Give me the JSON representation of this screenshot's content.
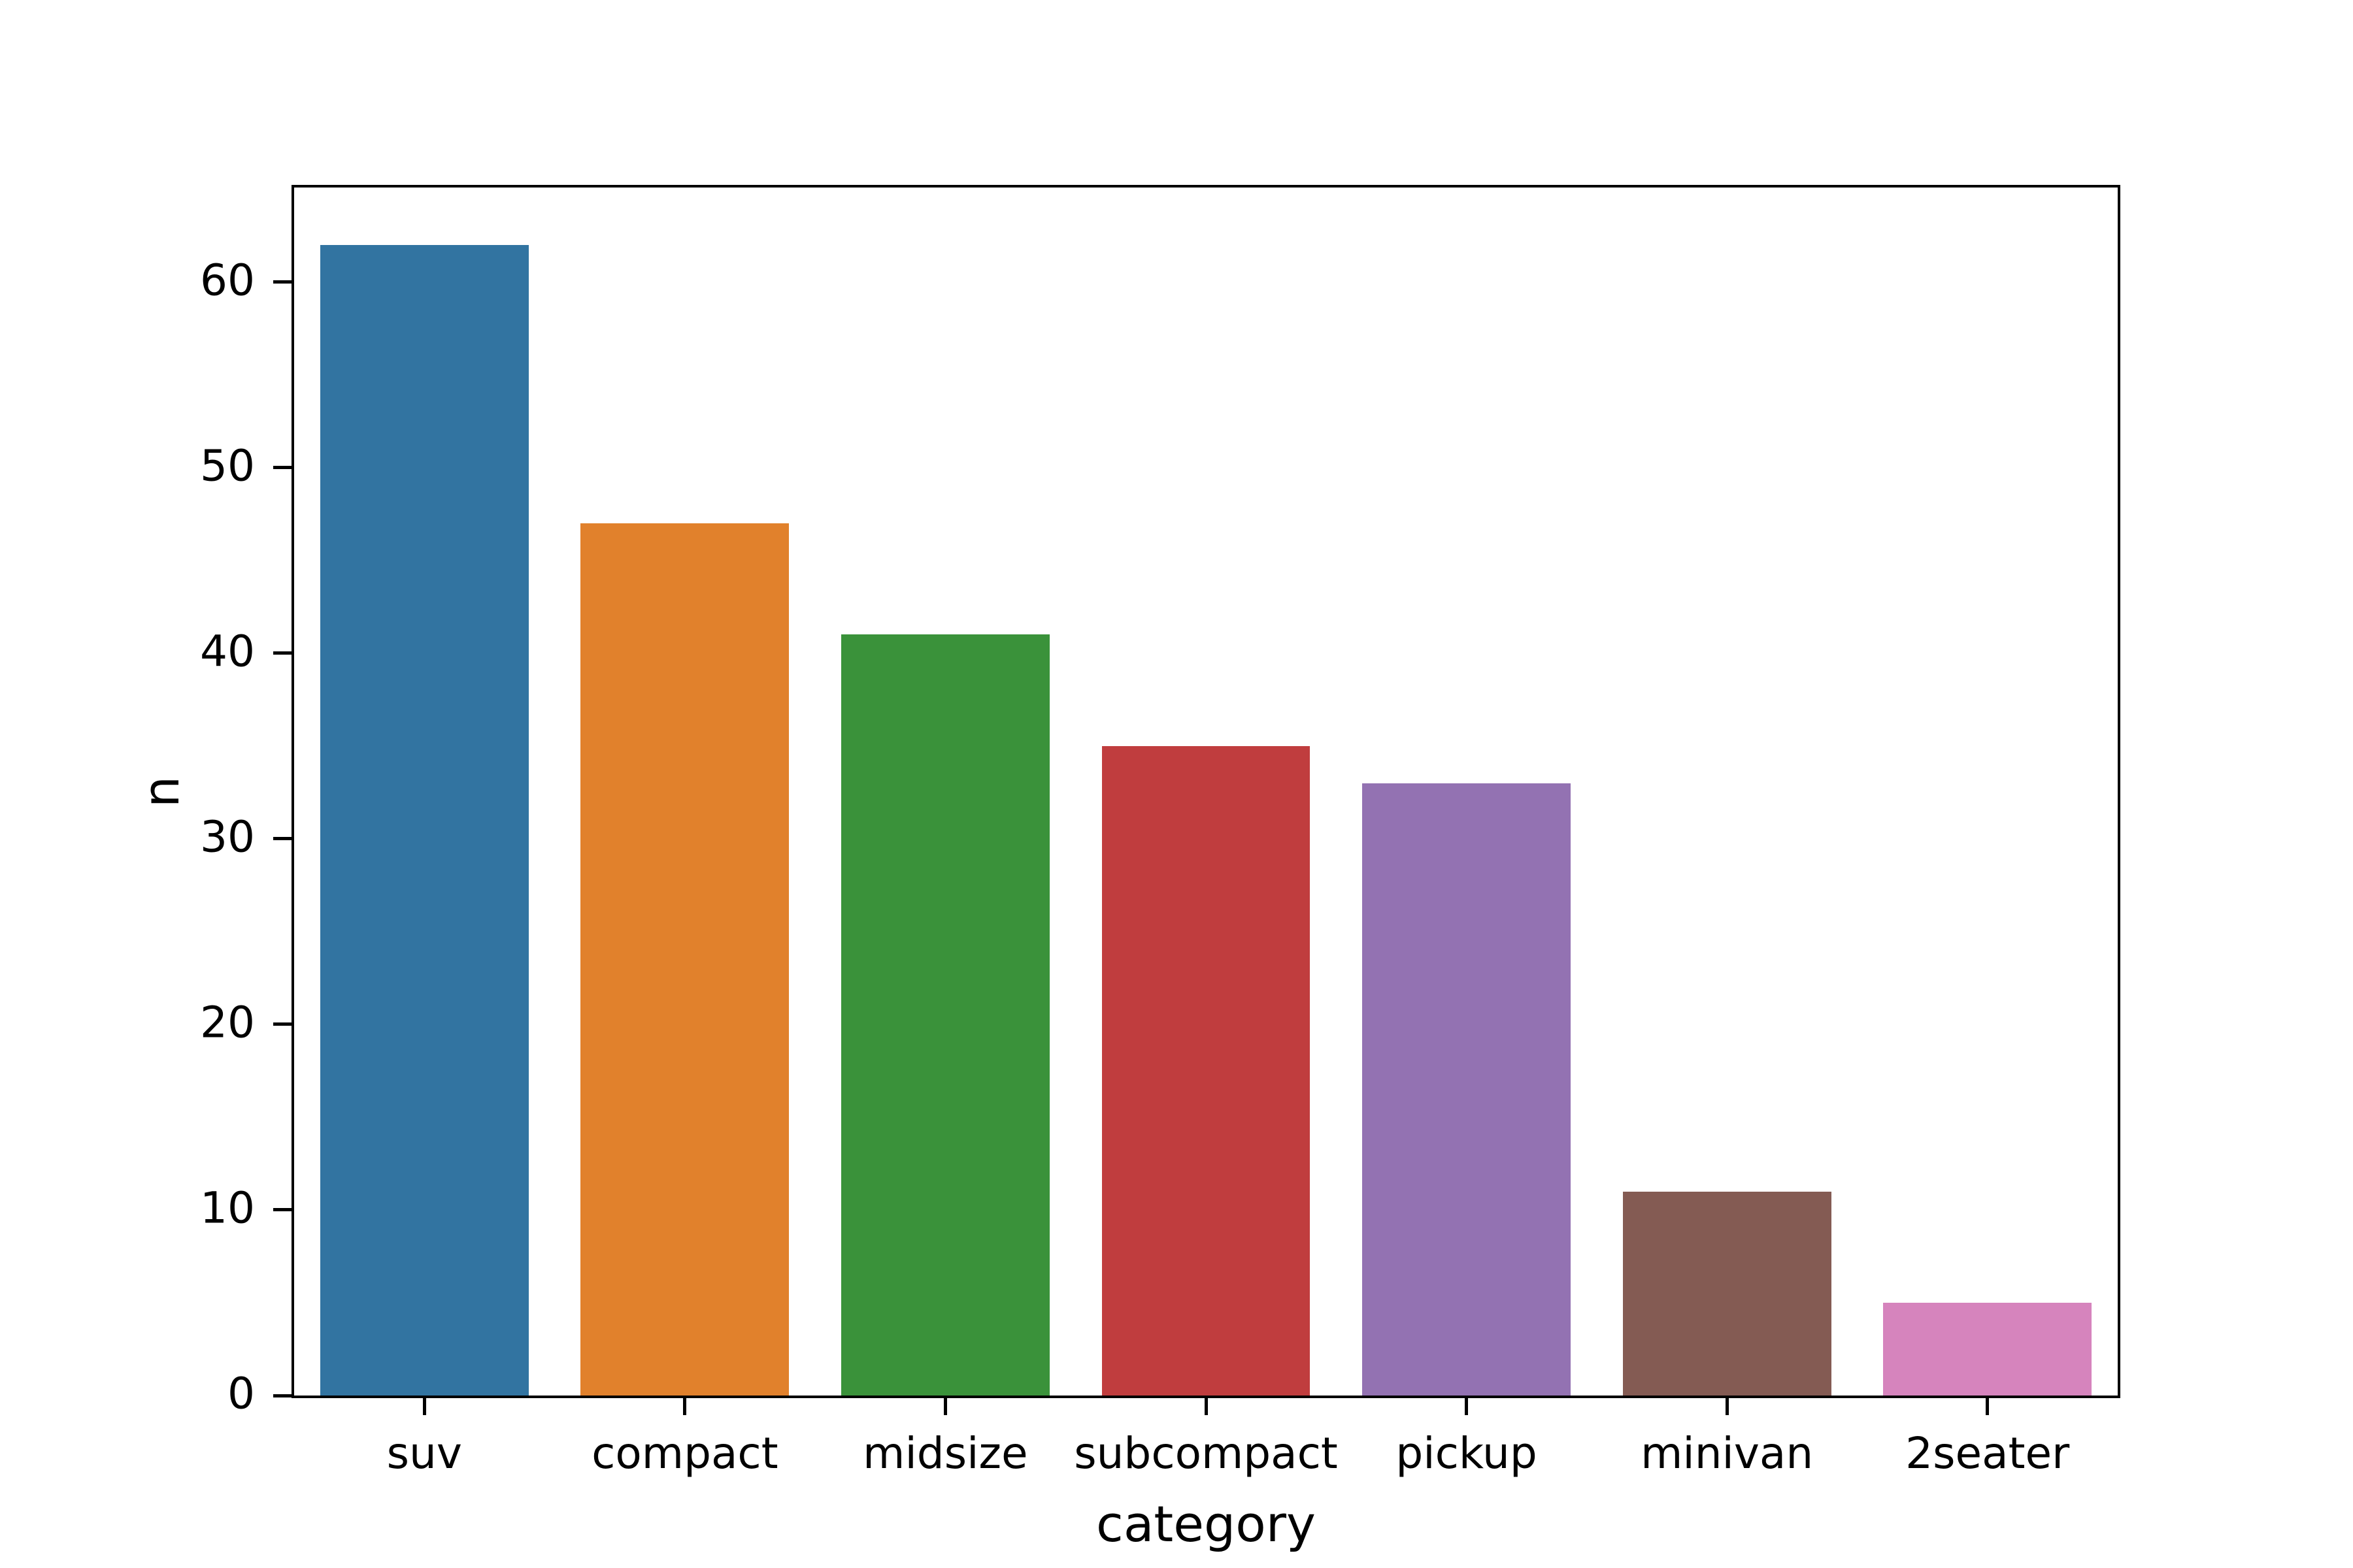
{
  "chart_data": {
    "type": "bar",
    "title": "",
    "xlabel": "category",
    "ylabel": "n",
    "categories": [
      "suv",
      "compact",
      "midsize",
      "subcompact",
      "pickup",
      "minivan",
      "2seater"
    ],
    "values": [
      62,
      47,
      41,
      35,
      33,
      11,
      5
    ],
    "bar_colors": [
      "#3274a1",
      "#e1812c",
      "#3a923a",
      "#c03d3e",
      "#9372b2",
      "#845b53",
      "#d684bd"
    ],
    "ylim": [
      0,
      65.1
    ],
    "yticks": [
      0,
      10,
      20,
      30,
      40,
      50,
      60
    ],
    "grid": false,
    "legend_position": "none",
    "background_color": "#ffffff",
    "axis_color": "#000000",
    "bar_width_fraction": 0.8
  }
}
